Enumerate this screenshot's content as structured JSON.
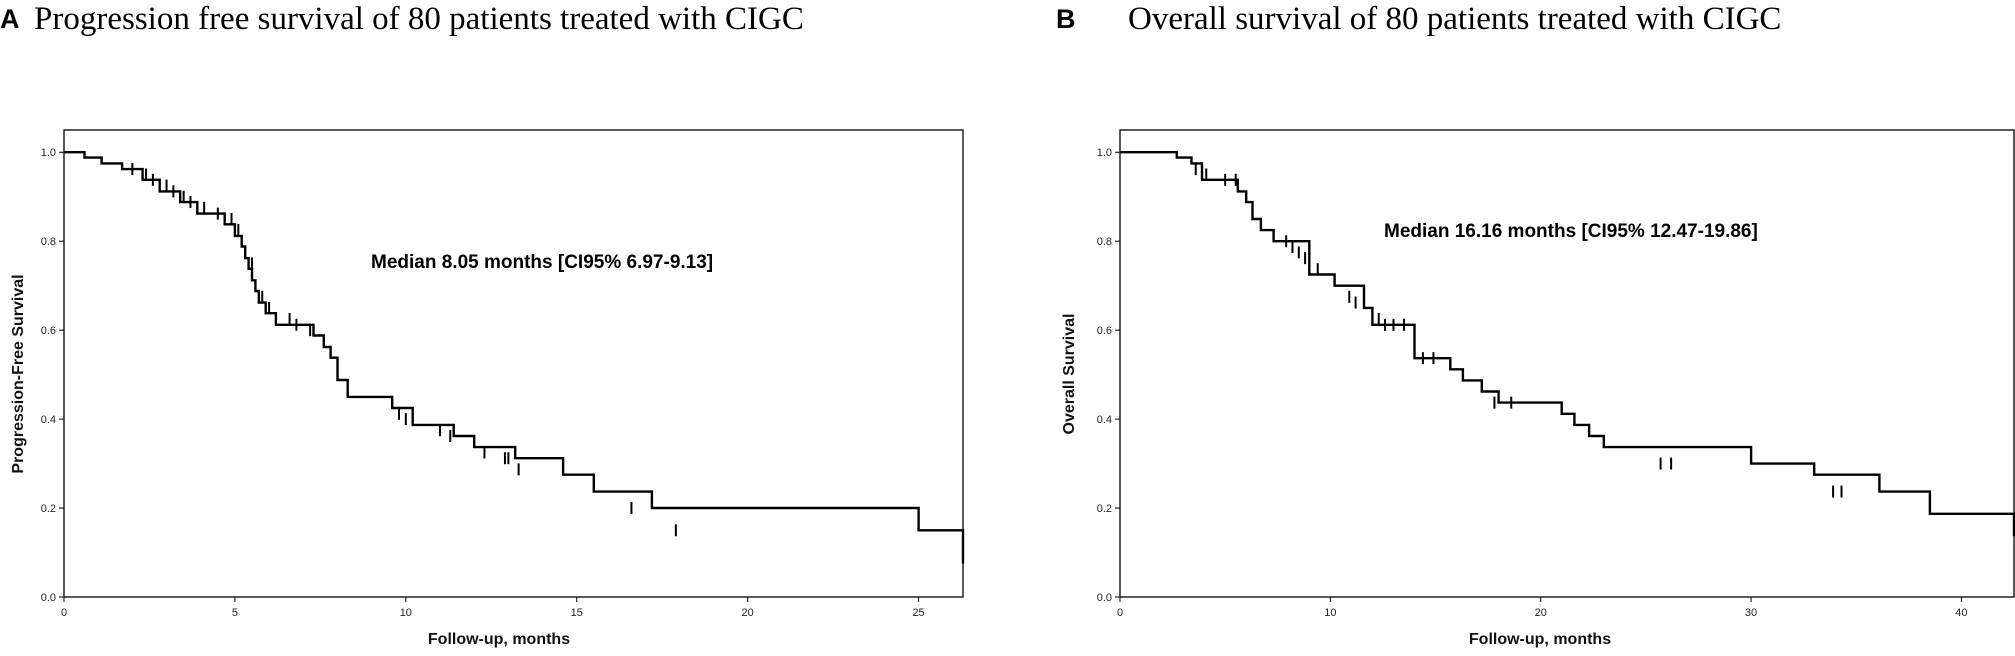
{
  "chart_data": [
    {
      "type": "line",
      "panel_label": "A",
      "title": "Progression free survival of 80 patients treated with CIGC",
      "xlabel": "Follow-up, months",
      "ylabel": "Progression-Free Survival",
      "annotation": "Median 8.05 months [CI95% 6.97-9.13]",
      "xlim": [
        0,
        26.3
      ],
      "ylim": [
        0,
        1.05
      ],
      "xticks": [
        0,
        5,
        10,
        15,
        20,
        25
      ],
      "yticks": [
        0.0,
        0.2,
        0.4,
        0.6,
        0.8,
        1.0
      ],
      "xtick_labels": [
        "0",
        "5",
        "10",
        "15",
        "20",
        "25"
      ],
      "ytick_labels": [
        "0.0",
        "0.2",
        "0.4",
        "0.6",
        "0.8",
        "1.0"
      ],
      "series": [
        {
          "name": "Progression-Free Survival",
          "x": [
            0,
            0.6,
            1.1,
            1.7,
            2.3,
            2.8,
            3.4,
            3.9,
            4.7,
            5.0,
            5.2,
            5.3,
            5.4,
            5.5,
            5.6,
            5.7,
            5.9,
            6.2,
            7.3,
            7.6,
            7.8,
            8.0,
            8.3,
            9.6,
            10.2,
            11.4,
            12.0,
            13.2,
            14.6,
            15.5,
            17.2,
            25.0,
            26.3
          ],
          "y": [
            1.0,
            0.988,
            0.975,
            0.962,
            0.938,
            0.912,
            0.888,
            0.862,
            0.838,
            0.812,
            0.788,
            0.762,
            0.738,
            0.712,
            0.688,
            0.662,
            0.638,
            0.612,
            0.588,
            0.562,
            0.538,
            0.488,
            0.45,
            0.425,
            0.387,
            0.362,
            0.337,
            0.312,
            0.275,
            0.237,
            0.2,
            0.15,
            0.075
          ]
        }
      ],
      "censored": {
        "x": [
          2.0,
          2.4,
          2.6,
          3.0,
          3.2,
          3.5,
          3.7,
          4.1,
          4.5,
          4.9,
          5.1,
          5.5,
          5.8,
          6.0,
          6.6,
          6.8,
          7.2,
          9.8,
          10.0,
          11.0,
          11.3,
          12.3,
          12.9,
          13.0,
          13.3,
          16.6,
          17.9
        ],
        "y": [
          0.962,
          0.95,
          0.938,
          0.925,
          0.912,
          0.9,
          0.888,
          0.875,
          0.862,
          0.85,
          0.825,
          0.75,
          0.675,
          0.65,
          0.625,
          0.612,
          0.6,
          0.412,
          0.4,
          0.375,
          0.362,
          0.325,
          0.312,
          0.312,
          0.287,
          0.2,
          0.15
        ]
      }
    },
    {
      "type": "line",
      "panel_label": "B",
      "title": "Overall survival of 80 patients treated with CIGC",
      "xlabel": "Follow-up, months",
      "ylabel": "Overall Survival",
      "annotation": "Median 16.16 months [CI95% 12.47-19.86]",
      "xlim": [
        0,
        42.5
      ],
      "ylim": [
        0,
        1.05
      ],
      "xticks": [
        0,
        10,
        20,
        30,
        40
      ],
      "yticks": [
        0.0,
        0.2,
        0.4,
        0.6,
        0.8,
        1.0
      ],
      "xtick_labels": [
        "0",
        "10",
        "20",
        "30",
        "40"
      ],
      "ytick_labels": [
        "0.0",
        "0.2",
        "0.4",
        "0.6",
        "0.8",
        "1.0"
      ],
      "series": [
        {
          "name": "Overall Survival",
          "x": [
            0,
            2.7,
            3.4,
            3.9,
            5.6,
            6.0,
            6.3,
            6.7,
            7.3,
            9.0,
            10.2,
            11.6,
            12.0,
            14.0,
            15.7,
            16.3,
            17.2,
            18.0,
            21.0,
            21.6,
            22.3,
            23.0,
            30.0,
            33.0,
            36.1,
            38.5,
            42.5
          ],
          "y": [
            1.0,
            0.988,
            0.975,
            0.938,
            0.912,
            0.888,
            0.85,
            0.825,
            0.8,
            0.725,
            0.7,
            0.65,
            0.612,
            0.537,
            0.512,
            0.487,
            0.462,
            0.437,
            0.412,
            0.387,
            0.362,
            0.337,
            0.3,
            0.275,
            0.237,
            0.187,
            0.137
          ]
        }
      ],
      "censored": {
        "x": [
          3.6,
          4.1,
          5.0,
          5.5,
          7.9,
          8.2,
          8.5,
          8.8,
          9.4,
          10.9,
          11.2,
          12.3,
          12.6,
          13.0,
          13.5,
          14.4,
          14.9,
          17.8,
          18.6,
          25.7,
          26.2,
          33.9,
          34.3
        ],
        "y": [
          0.962,
          0.95,
          0.938,
          0.938,
          0.8,
          0.787,
          0.775,
          0.762,
          0.737,
          0.675,
          0.662,
          0.625,
          0.612,
          0.612,
          0.612,
          0.537,
          0.537,
          0.437,
          0.437,
          0.3,
          0.3,
          0.237,
          0.237
        ]
      }
    }
  ]
}
